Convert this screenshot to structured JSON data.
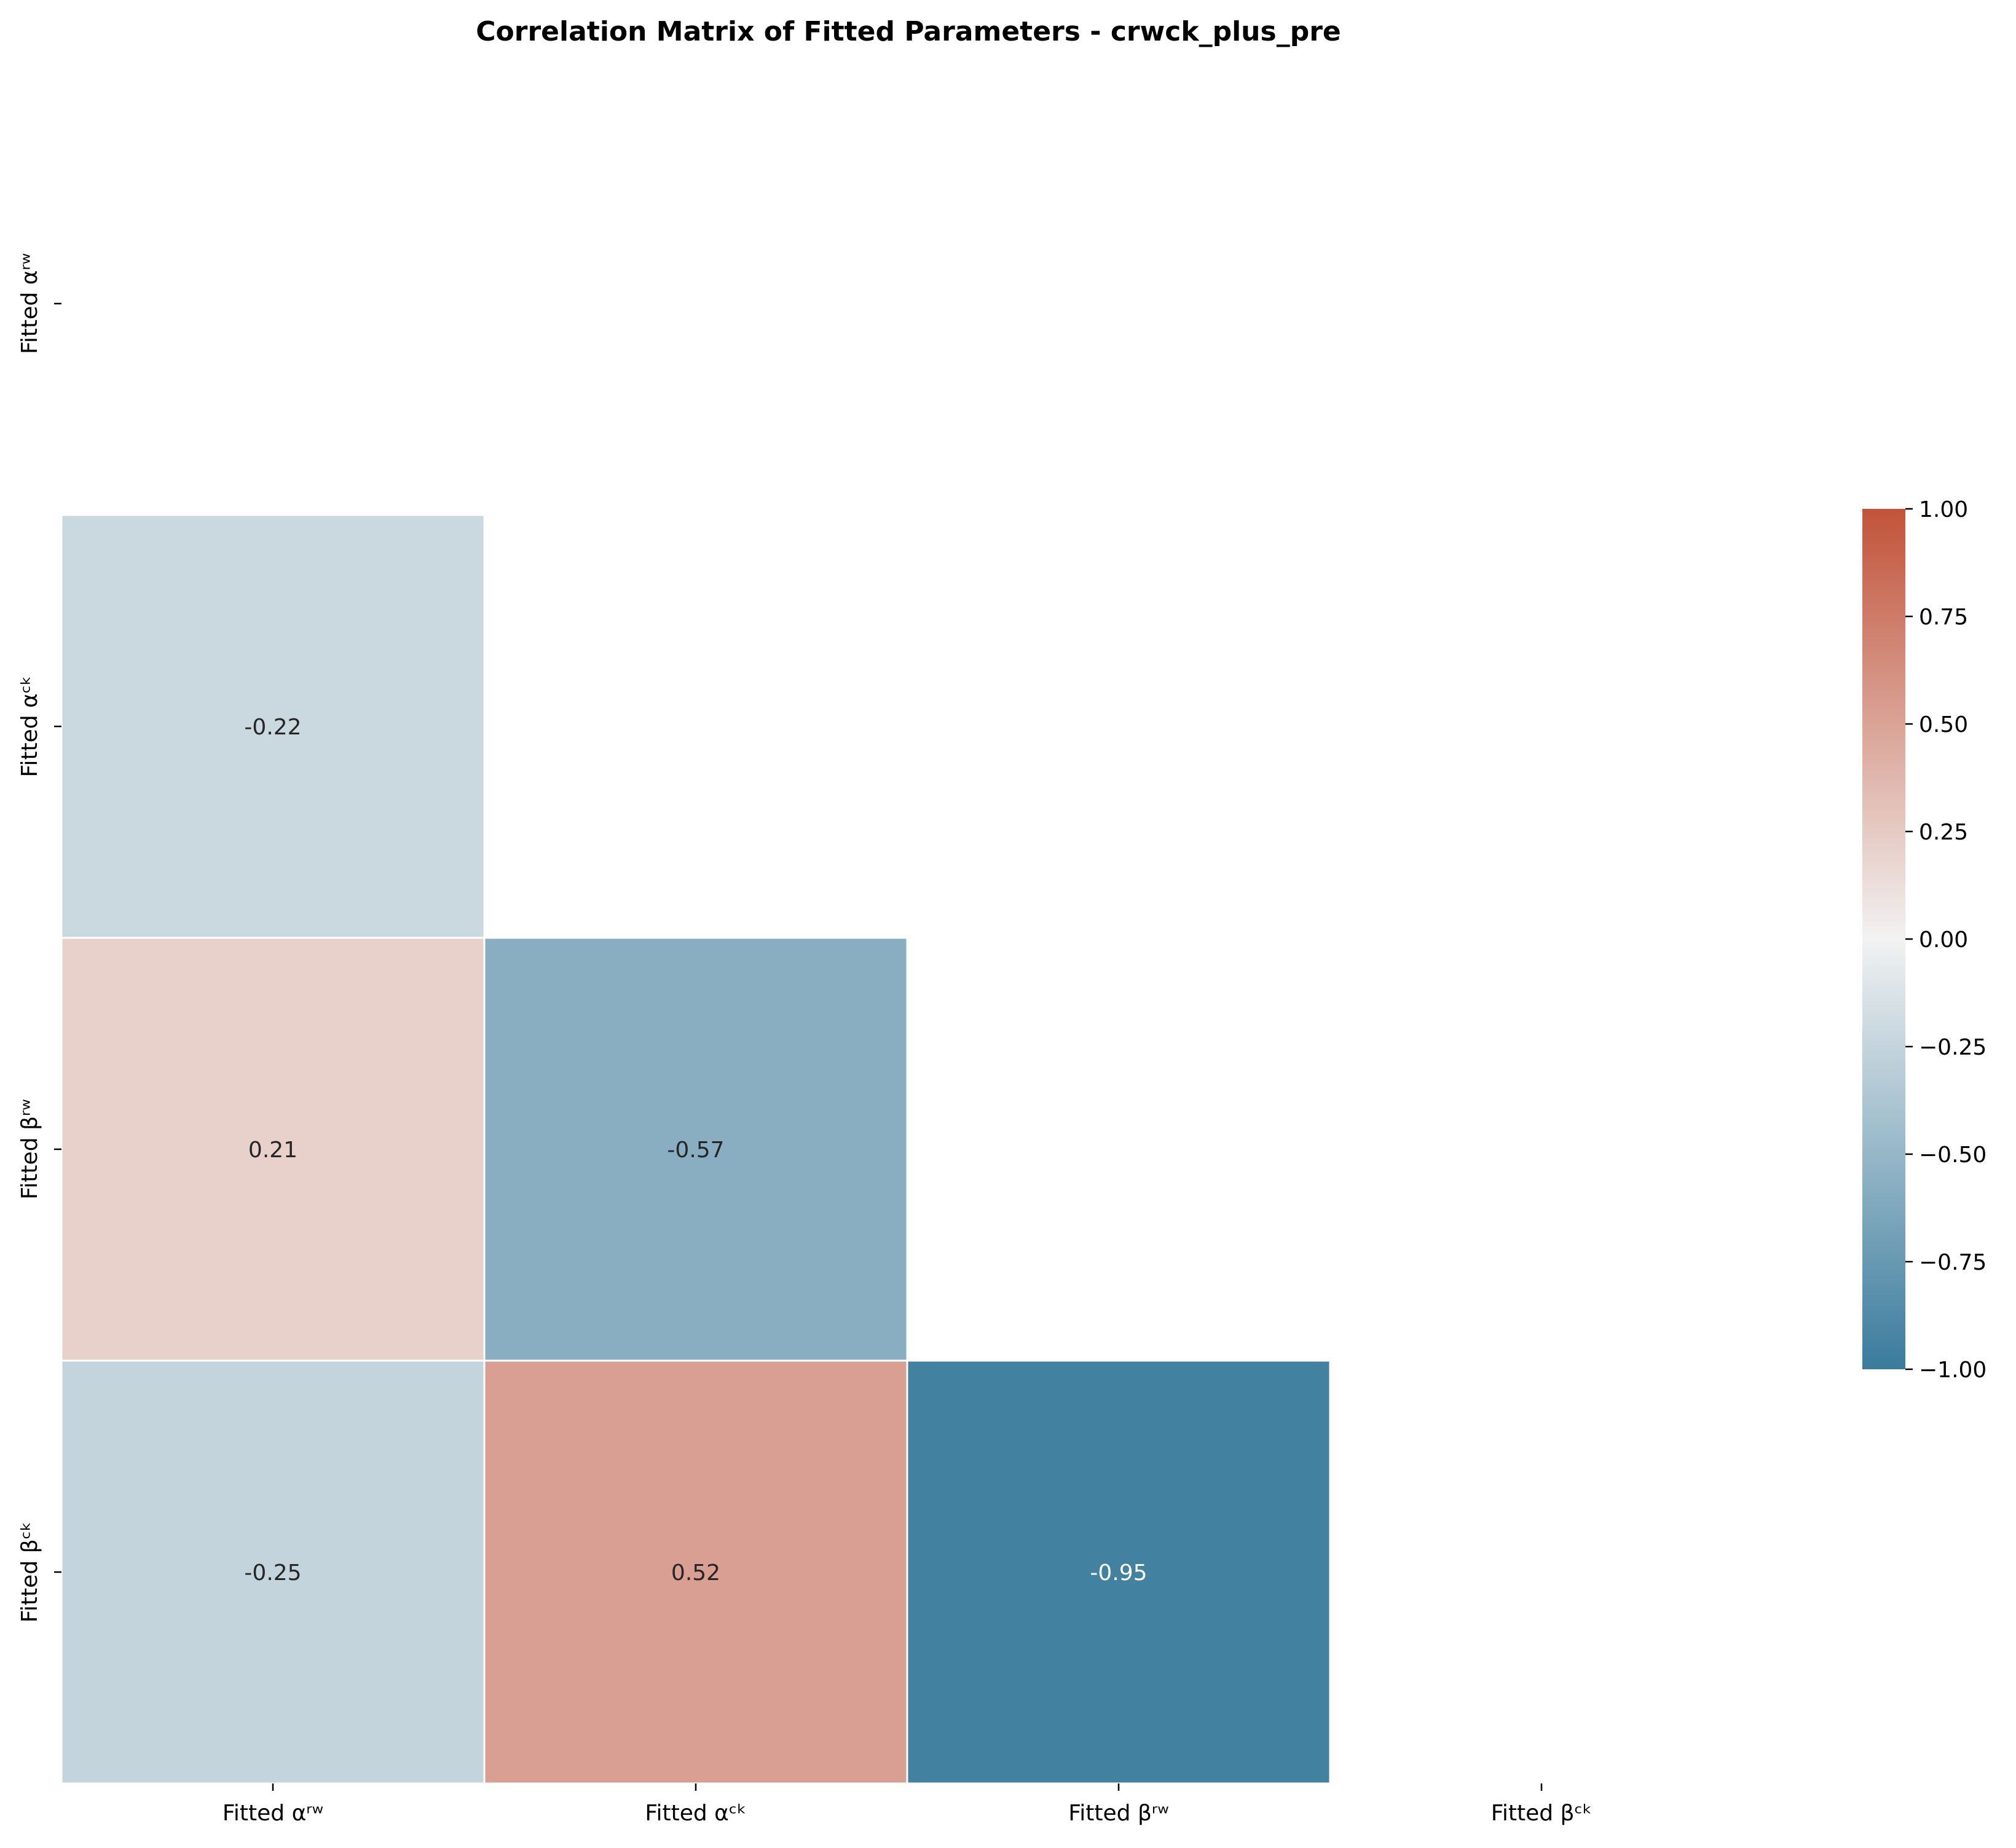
{
  "chart_data": {
    "type": "heatmap",
    "title": "Correlation Matrix of Fitted Parameters - crwck_plus_pre",
    "xlabel": "",
    "ylabel": "",
    "row_labels": [
      "Fitted αʳʷ",
      "Fitted αᶜᵏ",
      "Fitted βʳʷ",
      "Fitted βᶜᵏ"
    ],
    "col_labels": [
      "Fitted αʳʷ",
      "Fitted αᶜᵏ",
      "Fitted βʳʷ",
      "Fitted βᶜᵏ"
    ],
    "mask": "upper triangle including diagonal",
    "cells": [
      {
        "row": 1,
        "col": 0,
        "value": -0.22,
        "label": "-0.22"
      },
      {
        "row": 2,
        "col": 0,
        "value": 0.21,
        "label": "0.21"
      },
      {
        "row": 2,
        "col": 1,
        "value": -0.57,
        "label": "-0.57"
      },
      {
        "row": 3,
        "col": 0,
        "value": -0.25,
        "label": "-0.25"
      },
      {
        "row": 3,
        "col": 1,
        "value": 0.52,
        "label": "0.52"
      },
      {
        "row": 3,
        "col": 2,
        "value": -0.95,
        "label": "-0.95"
      }
    ],
    "colorbar": {
      "range": [
        -1.0,
        1.0
      ],
      "ticks": [
        {
          "value": 1.0,
          "label": "1.00"
        },
        {
          "value": 0.75,
          "label": "0.75"
        },
        {
          "value": 0.5,
          "label": "0.50"
        },
        {
          "value": 0.25,
          "label": "0.25"
        },
        {
          "value": 0.0,
          "label": "0.00"
        },
        {
          "value": -0.25,
          "label": "−0.25"
        },
        {
          "value": -0.5,
          "label": "−0.50"
        },
        {
          "value": -0.75,
          "label": "−0.75"
        },
        {
          "value": -1.0,
          "label": "−1.00"
        }
      ],
      "colors": {
        "negative_end": "#3a7b9d",
        "center": "#f2f2f2",
        "positive_end": "#c2533a"
      }
    },
    "grid": false,
    "annotation_colors": {
      "dark": "#262626",
      "light": "#ffffff"
    }
  }
}
